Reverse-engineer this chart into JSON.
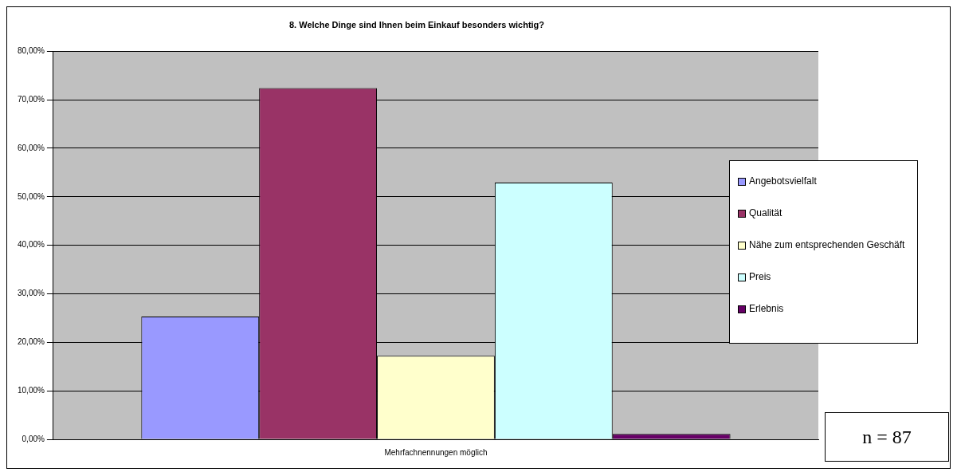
{
  "chart_data": {
    "type": "bar",
    "title": "8. Welche Dinge sind Ihnen beim Einkauf besonders wichtig?",
    "categories": [
      "Mehrfachnennungen möglich"
    ],
    "series": [
      {
        "name": "Angebotsvielfalt",
        "color": "#9999ff",
        "values": [
          25.3
        ]
      },
      {
        "name": "Qualität",
        "color": "#993366",
        "values": [
          72.4
        ]
      },
      {
        "name": "Nähe zum entsprechenden Geschäft",
        "color": "#ffffcc",
        "values": [
          17.2
        ]
      },
      {
        "name": "Preis",
        "color": "#ccffff",
        "values": [
          52.9
        ]
      },
      {
        "name": "Erlebnis",
        "color": "#660066",
        "values": [
          1.1
        ]
      }
    ],
    "ylim": [
      0,
      80
    ],
    "yticks": [
      {
        "value": 0,
        "label": "0,00%"
      },
      {
        "value": 10,
        "label": "10,00%"
      },
      {
        "value": 20,
        "label": "20,00%"
      },
      {
        "value": 30,
        "label": "30,00%"
      },
      {
        "value": 40,
        "label": "40,00%"
      },
      {
        "value": 50,
        "label": "50,00%"
      },
      {
        "value": 60,
        "label": "60,00%"
      },
      {
        "value": 70,
        "label": "70,00%"
      },
      {
        "value": 80,
        "label": "80,00%"
      }
    ],
    "grid": "y",
    "legend": "right",
    "annotations": [
      "n = 87"
    ]
  }
}
